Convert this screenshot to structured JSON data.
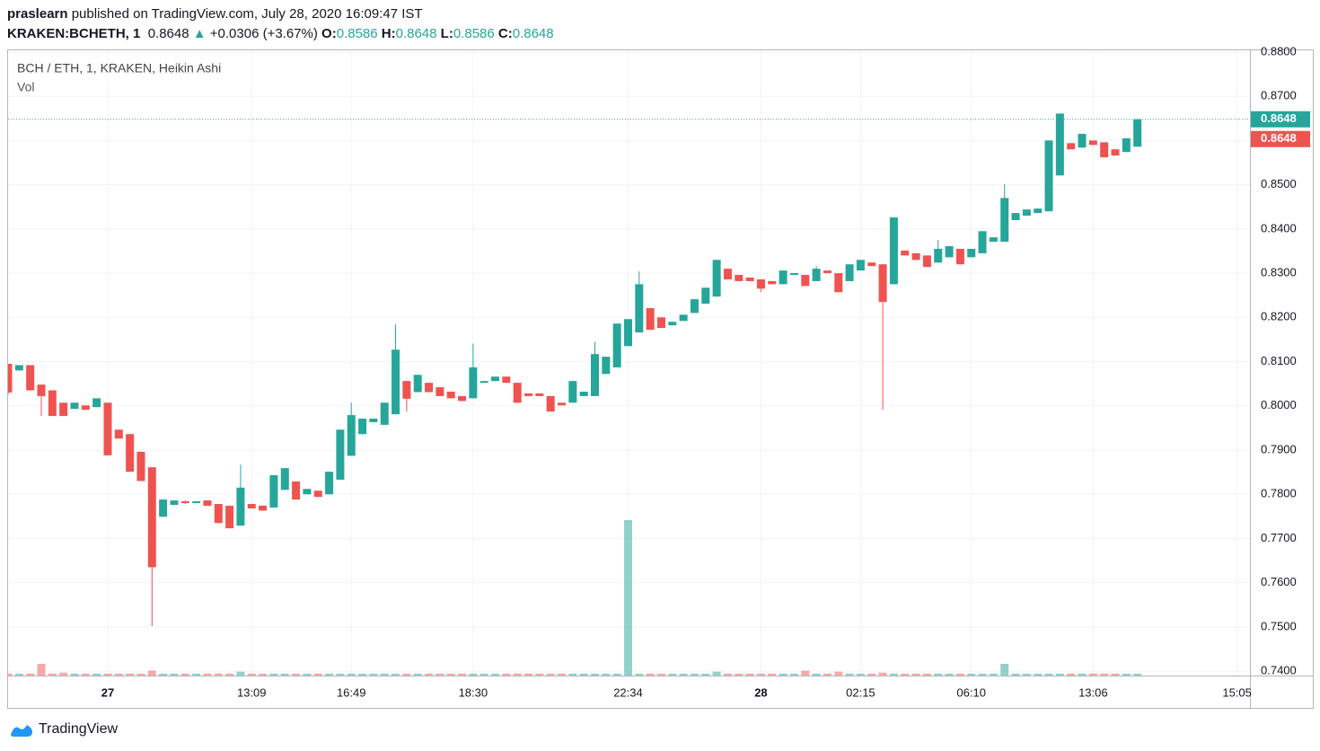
{
  "header": {
    "user": "praslearn",
    "published": "published on TradingView.com, July 28, 2020 16:09:47 IST",
    "symbol": "KRAKEN:BCHETH, 1",
    "price": "0.8648",
    "arrow": "▲",
    "change": "+0.0306 (+3.67%)",
    "ohlc": [
      {
        "key": "O:",
        "value": "0.8586"
      },
      {
        "key": "H:",
        "value": "0.8648"
      },
      {
        "key": "L:",
        "value": "0.8586"
      },
      {
        "key": "C:",
        "value": "0.8648"
      }
    ]
  },
  "footer": {
    "brand": "TradingView"
  },
  "chart_data": {
    "type": "candlestick",
    "title": "BCH / ETH, 1, KRAKEN, Heikin Ashi",
    "up_color": "#26a69a",
    "down_color": "#ef5350",
    "grid": true,
    "ylim": [
      0.739,
      0.8804
    ],
    "yticks": [
      {
        "value": 0.74,
        "label": "0.7400"
      },
      {
        "value": 0.75,
        "label": "0.7500"
      },
      {
        "value": 0.76,
        "label": "0.7600"
      },
      {
        "value": 0.77,
        "label": "0.7700"
      },
      {
        "value": 0.78,
        "label": "0.7800"
      },
      {
        "value": 0.79,
        "label": "0.7900"
      },
      {
        "value": 0.8,
        "label": "0.8000"
      },
      {
        "value": 0.81,
        "label": "0.8100"
      },
      {
        "value": 0.82,
        "label": "0.8200"
      },
      {
        "value": 0.83,
        "label": "0.8300"
      },
      {
        "value": 0.84,
        "label": "0.8400"
      },
      {
        "value": 0.85,
        "label": "0.8500"
      },
      {
        "value": 0.86,
        "label": "0.8600"
      },
      {
        "value": 0.87,
        "label": "0.8700"
      },
      {
        "value": 0.88,
        "label": "0.8800"
      }
    ],
    "last_price": {
      "value": 0.8648,
      "label": "0.8648"
    },
    "categories": [
      null,
      null,
      null,
      null,
      null,
      null,
      null,
      null,
      null,
      "27",
      null,
      null,
      null,
      null,
      null,
      null,
      null,
      null,
      null,
      null,
      null,
      null,
      "13:09",
      null,
      null,
      null,
      null,
      null,
      null,
      null,
      null,
      "16:49",
      null,
      null,
      null,
      null,
      null,
      null,
      null,
      null,
      null,
      null,
      "18:30",
      null,
      null,
      null,
      null,
      null,
      null,
      null,
      null,
      null,
      null,
      null,
      null,
      null,
      "22:34",
      null,
      null,
      null,
      null,
      null,
      null,
      null,
      null,
      null,
      null,
      null,
      "28",
      null,
      null,
      null,
      null,
      null,
      null,
      null,
      null,
      "02:15",
      null,
      null,
      null,
      null,
      null,
      null,
      null,
      null,
      null,
      "06:10",
      null,
      null,
      null,
      null,
      null,
      null,
      null,
      null,
      null,
      null,
      "13:06",
      null,
      null,
      null,
      null,
      null,
      null,
      null,
      null,
      null,
      null,
      null,
      null,
      "15:05"
    ],
    "open": [
      0.8095,
      0.808,
      0.8092,
      0.8048,
      0.8035,
      0.8007,
      0.7993,
      0.8001,
      0.7997,
      0.8007,
      0.7946,
      0.7936,
      0.7896,
      0.7861,
      0.7749,
      0.7776,
      0.7784,
      0.778,
      0.7786,
      0.7778,
      0.7774,
      0.7729,
      0.7778,
      0.7774,
      0.777,
      0.781,
      0.7829,
      0.78,
      0.7808,
      0.78,
      0.7833,
      0.7887,
      0.7936,
      0.7963,
      0.7957,
      0.7981,
      0.8056,
      0.8031,
      0.8052,
      0.8042,
      0.8032,
      0.8022,
      0.8017,
      0.8052,
      0.8056,
      0.8066,
      0.8052,
      0.8028,
      0.8028,
      0.8022,
      0.8007,
      0.8007,
      0.8022,
      0.8022,
      0.8072,
      0.8087,
      0.8135,
      0.8166,
      0.8221,
      0.82,
      0.8182,
      0.8192,
      0.821,
      0.8231,
      0.8247,
      0.831,
      0.8296,
      0.829,
      0.8286,
      0.8282,
      0.8275,
      0.8296,
      0.8296,
      0.8282,
      0.8306,
      0.83,
      0.8282,
      0.8306,
      0.8324,
      0.832,
      0.8275,
      0.8351,
      0.8345,
      0.834,
      0.8324,
      0.8336,
      0.8355,
      0.8336,
      0.8345,
      0.8371,
      0.8371,
      0.842,
      0.843,
      0.8436,
      0.844,
      0.8521,
      0.8594,
      0.8584,
      0.86,
      0.8596,
      0.858,
      0.8574,
      0.8586,
      null,
      null,
      null,
      null,
      null,
      null,
      null,
      null,
      null
    ],
    "high": [
      0.8095,
      0.8092,
      0.8092,
      0.8048,
      0.8035,
      0.8007,
      0.8007,
      0.8001,
      0.8017,
      0.8007,
      0.7946,
      0.7936,
      0.7896,
      0.7861,
      0.7788,
      0.7786,
      0.7786,
      0.7784,
      0.7786,
      0.7778,
      0.7774,
      0.7867,
      0.7778,
      0.7774,
      0.7843,
      0.7859,
      0.7829,
      0.7812,
      0.7808,
      0.7851,
      0.7946,
      0.8007,
      0.7971,
      0.7971,
      0.8007,
      0.8184,
      0.8056,
      0.807,
      0.8052,
      0.8042,
      0.8032,
      0.8022,
      0.8141,
      0.8056,
      0.8066,
      0.8066,
      0.8052,
      0.8028,
      0.8028,
      0.8022,
      0.8007,
      0.8056,
      0.8032,
      0.8145,
      0.8111,
      0.8186,
      0.8196,
      0.8304,
      0.8221,
      0.82,
      0.819,
      0.8206,
      0.8241,
      0.8267,
      0.833,
      0.831,
      0.8296,
      0.829,
      0.8286,
      0.8282,
      0.8306,
      0.83,
      0.8296,
      0.8316,
      0.8306,
      0.83,
      0.832,
      0.833,
      0.8324,
      0.832,
      0.8426,
      0.8351,
      0.8345,
      0.834,
      0.8375,
      0.8361,
      0.8355,
      0.8355,
      0.8395,
      0.8381,
      0.8501,
      0.8436,
      0.8444,
      0.8446,
      0.86,
      0.8661,
      0.8594,
      0.8615,
      0.86,
      0.8596,
      0.858,
      0.8605,
      0.8648,
      null,
      null,
      null,
      null,
      null,
      null,
      null,
      null,
      null
    ],
    "low": [
      0.8025,
      0.808,
      0.8035,
      0.7977,
      0.7977,
      0.7977,
      0.7993,
      0.7991,
      0.7997,
      0.7888,
      0.7926,
      0.7851,
      0.783,
      0.7502,
      0.7749,
      0.7776,
      0.7778,
      0.778,
      0.7774,
      0.7735,
      0.7723,
      0.7729,
      0.7768,
      0.7763,
      0.777,
      0.781,
      0.7788,
      0.78,
      0.7794,
      0.78,
      0.7833,
      0.7887,
      0.7936,
      0.7963,
      0.7957,
      0.7981,
      0.7987,
      0.8031,
      0.8031,
      0.8022,
      0.8017,
      0.8011,
      0.8017,
      0.8052,
      0.8056,
      0.8052,
      0.8007,
      0.8022,
      0.8022,
      0.7987,
      0.8001,
      0.8007,
      0.8022,
      0.8022,
      0.8072,
      0.8087,
      0.8135,
      0.8166,
      0.8172,
      0.8176,
      0.8182,
      0.8192,
      0.821,
      0.8231,
      0.8247,
      0.8286,
      0.8282,
      0.8282,
      0.8257,
      0.8275,
      0.8275,
      0.8296,
      0.8271,
      0.8282,
      0.83,
      0.8257,
      0.8282,
      0.8306,
      0.8316,
      0.7991,
      0.8275,
      0.834,
      0.833,
      0.8314,
      0.8324,
      0.8336,
      0.832,
      0.8336,
      0.8345,
      0.8371,
      0.8371,
      0.842,
      0.843,
      0.8436,
      0.844,
      0.8521,
      0.858,
      0.8584,
      0.859,
      0.8562,
      0.8566,
      0.8574,
      0.8586,
      null,
      null,
      null,
      null,
      null,
      null,
      null,
      null,
      null
    ],
    "close": [
      0.803,
      0.8092,
      0.8035,
      0.8022,
      0.7977,
      0.7977,
      0.8007,
      0.7991,
      0.8017,
      0.7888,
      0.7926,
      0.7851,
      0.783,
      0.7635,
      0.7788,
      0.7786,
      0.778,
      0.7784,
      0.7774,
      0.7735,
      0.7723,
      0.7815,
      0.7768,
      0.7763,
      0.7843,
      0.7859,
      0.7788,
      0.7812,
      0.7794,
      0.7851,
      0.7946,
      0.7979,
      0.7971,
      0.7971,
      0.8007,
      0.8127,
      0.8016,
      0.807,
      0.8031,
      0.8022,
      0.8017,
      0.8011,
      0.8087,
      0.8056,
      0.8066,
      0.8052,
      0.8007,
      0.8022,
      0.8022,
      0.7987,
      0.8001,
      0.8056,
      0.8032,
      0.8117,
      0.8111,
      0.8186,
      0.8196,
      0.8275,
      0.8172,
      0.8176,
      0.819,
      0.8206,
      0.8241,
      0.8267,
      0.833,
      0.8286,
      0.8282,
      0.8282,
      0.8265,
      0.8275,
      0.8306,
      0.83,
      0.8271,
      0.831,
      0.83,
      0.8257,
      0.832,
      0.833,
      0.8316,
      0.8235,
      0.8426,
      0.834,
      0.833,
      0.8314,
      0.8355,
      0.8361,
      0.832,
      0.8355,
      0.8395,
      0.8381,
      0.847,
      0.8436,
      0.8444,
      0.8446,
      0.86,
      0.8661,
      0.858,
      0.8615,
      0.859,
      0.8562,
      0.8566,
      0.8605,
      0.8648,
      null,
      null,
      null,
      null,
      null,
      null,
      null,
      null,
      null
    ],
    "volume": {
      "name": "Vol",
      "values": [
        1,
        1,
        1,
        6,
        1,
        1.5,
        1,
        1,
        1,
        1,
        1,
        1,
        1,
        2.5,
        1,
        1,
        1,
        1,
        1,
        1,
        1,
        2,
        1,
        1,
        1,
        1,
        1,
        1,
        1,
        1,
        1,
        1,
        1,
        1,
        1,
        1,
        1,
        1,
        1,
        1,
        1,
        1,
        1,
        1,
        1,
        1,
        1,
        1,
        1,
        1,
        1,
        1,
        1,
        1,
        1,
        1,
        80,
        1,
        1,
        1,
        1,
        1,
        1,
        1,
        2,
        1,
        1,
        1,
        1,
        1,
        1,
        1,
        2.5,
        1,
        1,
        2,
        1,
        1,
        1,
        1.5,
        1,
        1,
        1,
        1,
        1,
        1,
        1,
        1,
        1,
        1,
        6,
        1,
        1,
        1,
        1,
        1,
        1,
        1,
        1,
        1,
        1,
        1,
        1,
        null,
        null,
        null,
        null,
        null,
        null,
        null,
        null,
        null
      ]
    }
  }
}
